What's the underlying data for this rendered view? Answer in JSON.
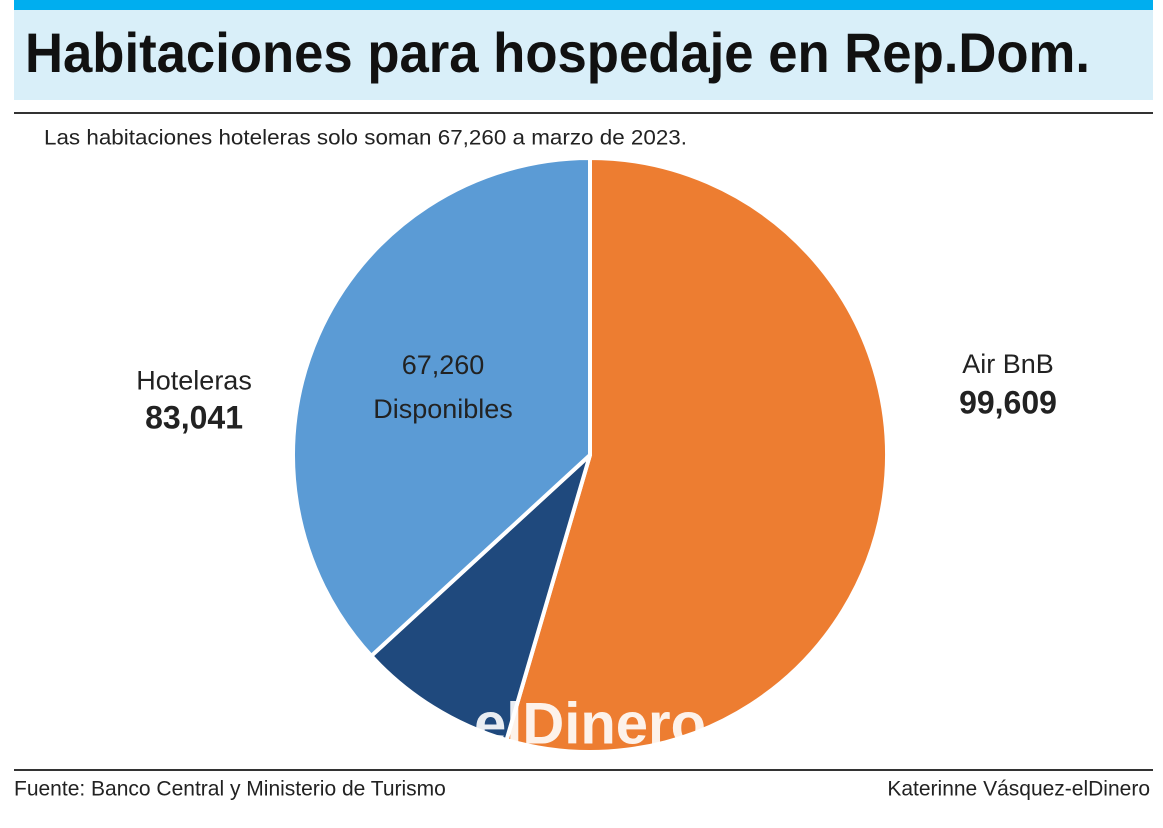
{
  "chart_data": {
    "type": "pie",
    "title": "Habitaciones para hospedaje en Rep.Dom.",
    "subtitle": "Las habitaciones hoteleras solo soman 67,260 a marzo de 2023.",
    "slices": [
      {
        "name": "Air BnB",
        "value": 99609,
        "value_label": "99,609",
        "color": "#ed7d31"
      },
      {
        "name": null,
        "value": 15781,
        "color": "#1f497d"
      },
      {
        "name": "Disponibles",
        "value": 67260,
        "value_label": "67,260",
        "color": "#5b9bd5"
      }
    ],
    "group": {
      "name": "Hoteleras",
      "value": 83041,
      "value_label": "83,041"
    },
    "watermark": "elDinero",
    "source": "Fuente: Banco Central y Ministerio de Turismo",
    "author": "Katerinne Vásquez-elDinero"
  }
}
